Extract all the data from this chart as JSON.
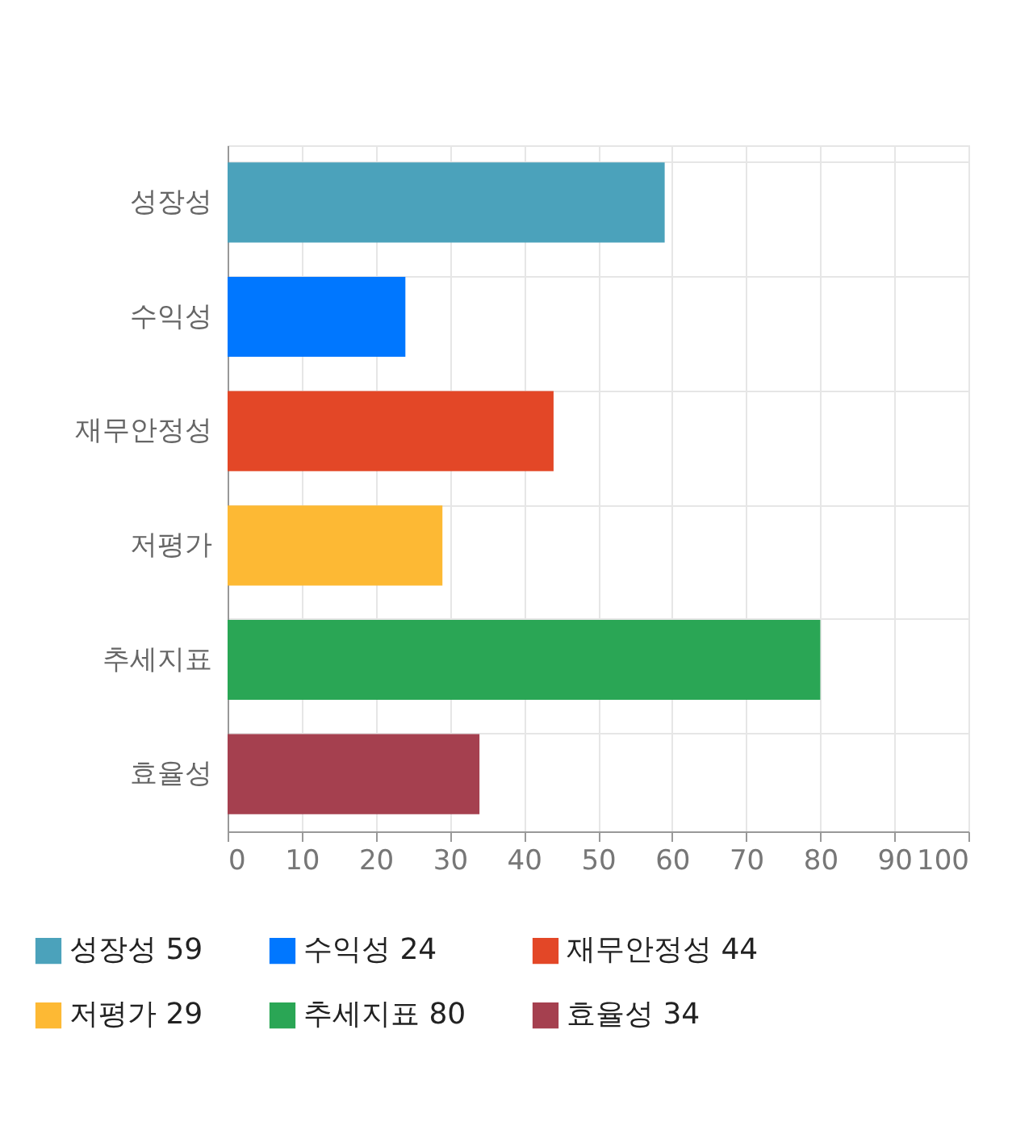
{
  "chart_data": {
    "type": "bar",
    "orientation": "horizontal",
    "categories": [
      "성장성",
      "수익성",
      "재무안정성",
      "저평가",
      "추세지표",
      "효율성"
    ],
    "series": [
      {
        "name": "성장성 59",
        "color": "#4ba2bb",
        "values": [
          59,
          null,
          null,
          null,
          null,
          null
        ]
      },
      {
        "name": "수익성 24",
        "color": "#0077ff",
        "values": [
          null,
          24,
          null,
          null,
          null,
          null
        ]
      },
      {
        "name": "재무안정성 44",
        "color": "#e34727",
        "values": [
          null,
          null,
          44,
          null,
          null,
          null
        ]
      },
      {
        "name": "저평가 29",
        "color": "#fdb934",
        "values": [
          null,
          null,
          null,
          29,
          null,
          null
        ]
      },
      {
        "name": "추세지표 80",
        "color": "#2aa655",
        "values": [
          null,
          null,
          null,
          null,
          80,
          null
        ]
      },
      {
        "name": "효율성 34",
        "color": "#a5404f",
        "values": [
          null,
          null,
          null,
          null,
          null,
          34
        ]
      }
    ],
    "xlim": [
      0,
      100
    ],
    "xticks": [
      0,
      10,
      20,
      30,
      40,
      50,
      60,
      70,
      80,
      90,
      100
    ],
    "grid": true,
    "legend": "bottom"
  }
}
